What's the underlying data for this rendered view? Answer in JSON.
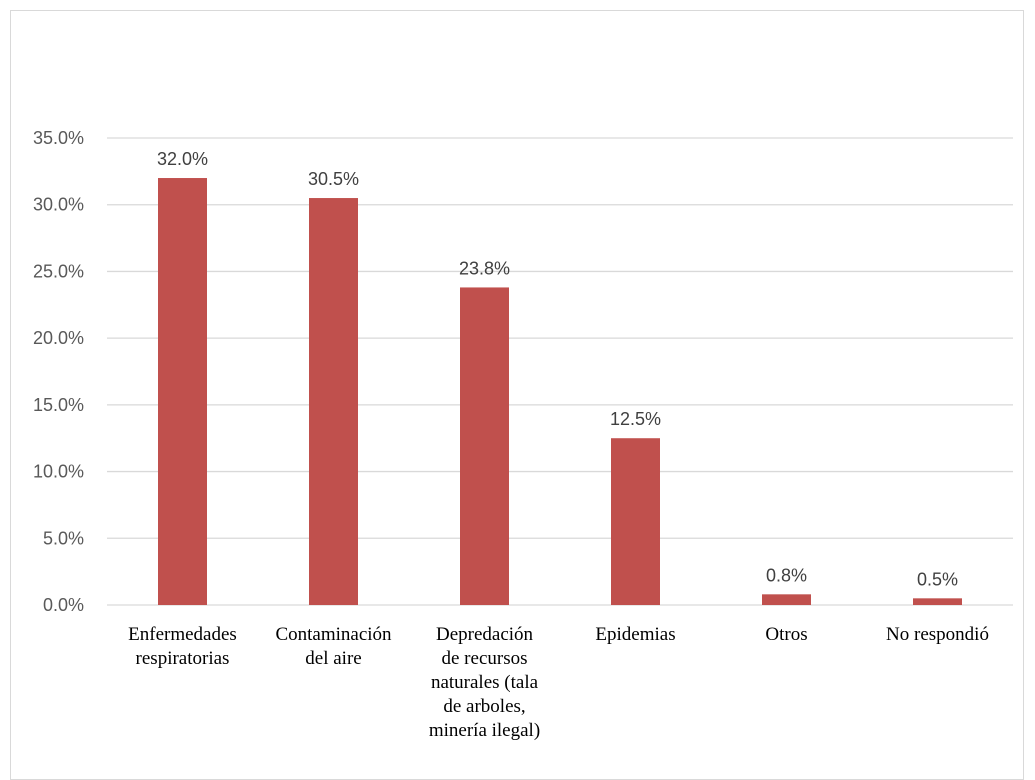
{
  "chart_data": {
    "type": "bar",
    "categories": [
      [
        "Enfermedades",
        "respiratorias"
      ],
      [
        "Contaminación",
        "del aire"
      ],
      [
        "Depredación",
        "de recursos",
        "naturales (tala",
        "de arboles,",
        "minería ilegal)"
      ],
      [
        "Epidemias"
      ],
      [
        "Otros"
      ],
      [
        "No respondió"
      ]
    ],
    "values": [
      32.0,
      30.5,
      23.8,
      12.5,
      0.8,
      0.5
    ],
    "value_labels": [
      "32.0%",
      "30.5%",
      "23.8%",
      "12.5%",
      "0.8%",
      "0.5%"
    ],
    "y_ticks": [
      "0.0%",
      "5.0%",
      "10.0%",
      "15.0%",
      "20.0%",
      "25.0%",
      "30.0%",
      "35.0%"
    ],
    "ylim": [
      0,
      35
    ],
    "grid": true,
    "bar_color": "#c0504d",
    "grid_color": "#d9d9d9",
    "title": "",
    "xlabel": "",
    "ylabel": ""
  }
}
